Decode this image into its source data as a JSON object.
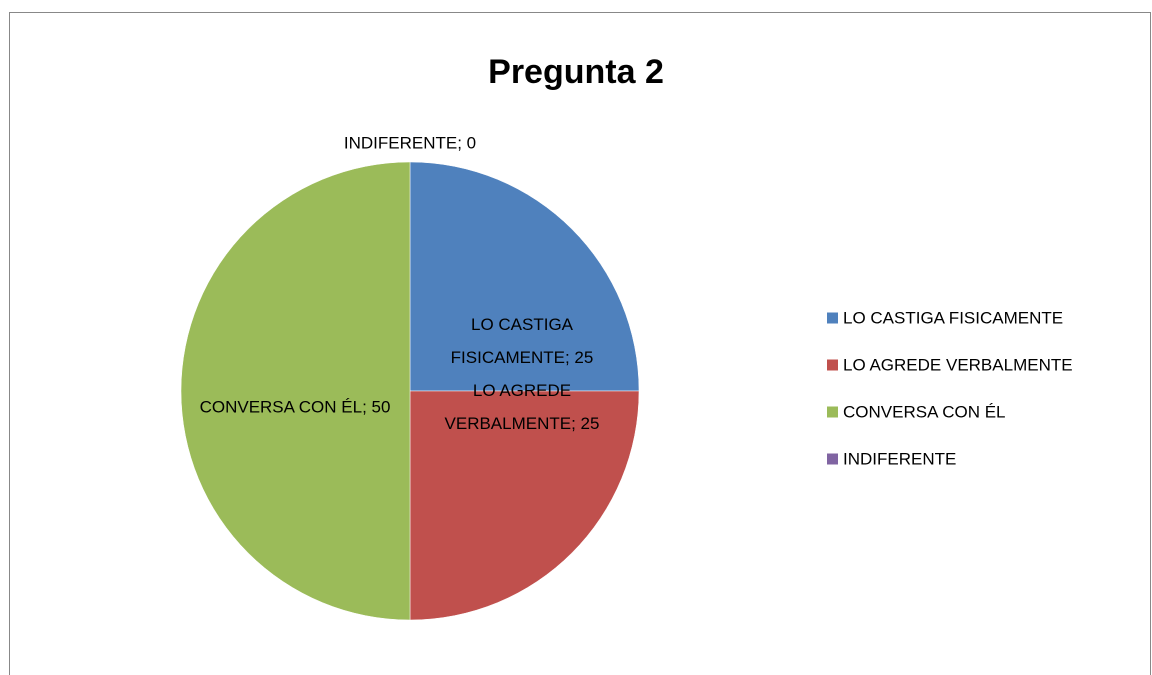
{
  "chart_data": {
    "type": "pie",
    "title": "Pregunta 2",
    "categories": [
      "LO CASTIGA FISICAMENTE",
      "LO AGREDE VERBALMENTE",
      "CONVERSA CON ÉL",
      "INDIFERENTE"
    ],
    "values": [
      25,
      25,
      50,
      0
    ],
    "value_labels": [
      "LO CASTIGA FISICAMENTE; 25",
      "LO AGREDE VERBALMENTE; 25",
      "CONVERSA CON ÉL; 50",
      "INDIFERENTE; 0"
    ],
    "colors": [
      "#4f81bd",
      "#c0504d",
      "#9bbb59",
      "#8064a2"
    ],
    "legend": "right"
  }
}
